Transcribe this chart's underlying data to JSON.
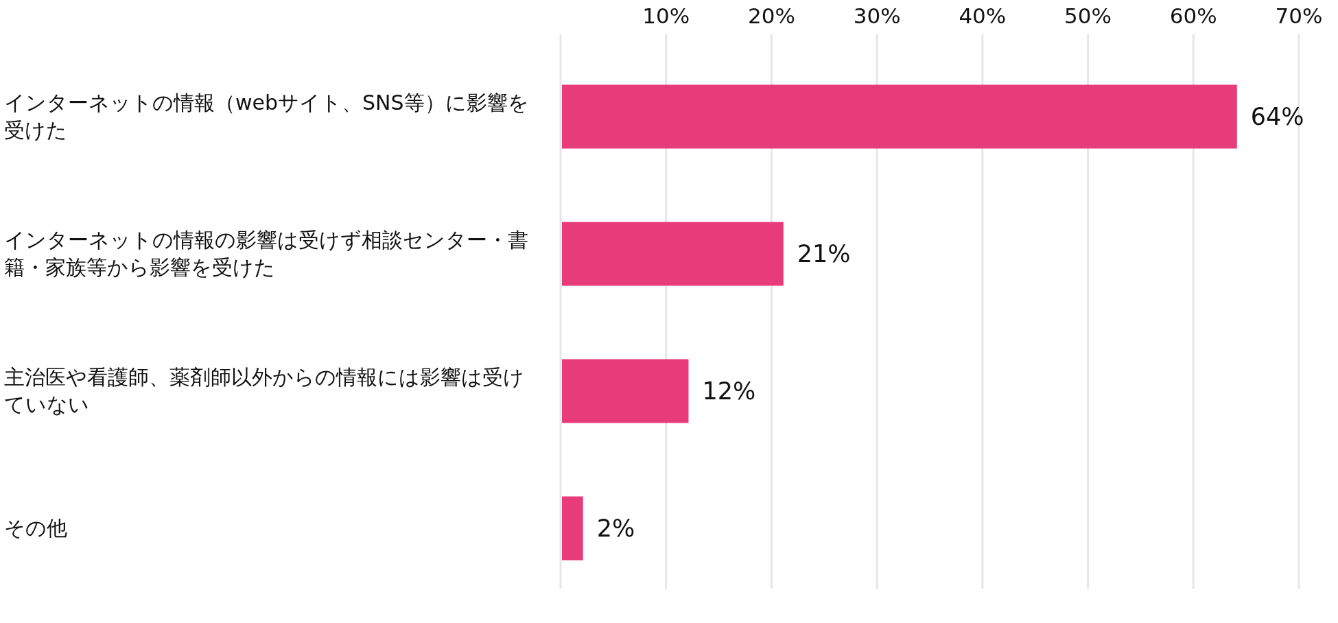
{
  "chart_data": {
    "type": "bar",
    "orientation": "horizontal",
    "categories": [
      "インターネットの情報（webサイト、SNS等）に影響を受けた",
      "インターネットの情報の影響は受けず相談センター・書籍・家族等から影響を受けた",
      "主治医や看護師、薬剤師以外からの情報には影響は受けていない",
      "その他"
    ],
    "values": [
      64,
      21,
      12,
      2
    ],
    "value_labels": [
      "64%",
      "21%",
      "12%",
      "2%"
    ],
    "color": "#e83b7a",
    "xlim": [
      0,
      70
    ],
    "xticks": [
      {
        "value": 0,
        "label": null
      },
      {
        "value": 10,
        "label": "10%"
      },
      {
        "value": 20,
        "label": "20%"
      },
      {
        "value": 30,
        "label": "30%"
      },
      {
        "value": 40,
        "label": "40%"
      },
      {
        "value": 50,
        "label": "50%"
      },
      {
        "value": 60,
        "label": "60%"
      },
      {
        "value": 70,
        "label": "70%"
      }
    ],
    "grid": "x"
  }
}
